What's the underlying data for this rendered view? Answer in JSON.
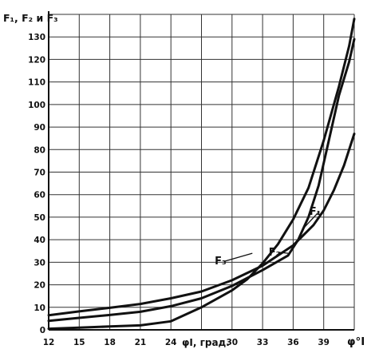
{
  "chart_data": {
    "type": "line",
    "y_axis_title": "F₁, F₂ и F₃",
    "x_axis_title_inline": "φI, град.",
    "x_axis_end_label": "φ°I",
    "x_ticks": [
      "12",
      "15",
      "18",
      "21",
      "24",
      "30",
      "33",
      "36",
      "39"
    ],
    "y_ticks": [
      "0",
      "10",
      "20",
      "30",
      "40",
      "50",
      "60",
      "70",
      "80",
      "90",
      "100",
      "110",
      "120",
      "130"
    ],
    "xlim": [
      12,
      42
    ],
    "ylim": [
      0,
      140
    ],
    "grid": true,
    "series": [
      {
        "name": "F₁",
        "x": [
          12,
          15,
          18,
          21,
          24,
          27,
          30,
          33,
          36,
          37,
          38,
          39,
          40,
          41,
          42
        ],
        "y": [
          6.5,
          8.2,
          9.8,
          11.5,
          14,
          17,
          22,
          28.5,
          37.5,
          42,
          46.5,
          53,
          62,
          73,
          87
        ]
      },
      {
        "name": "F₂",
        "x": [
          12,
          15,
          18,
          21,
          24,
          27,
          30,
          33,
          35.5,
          36.5,
          37.5,
          38.5,
          39.5,
          40.5,
          41.5,
          42
        ],
        "y": [
          4,
          5.3,
          6.6,
          8,
          10.5,
          14,
          19.5,
          26.5,
          33,
          40,
          50,
          64,
          84,
          104,
          119,
          129
        ]
      },
      {
        "name": "F₃",
        "x": [
          12,
          15,
          18,
          21,
          24,
          27,
          30,
          31.5,
          33,
          34.5,
          36,
          37.5,
          39,
          40.5,
          41.5,
          42
        ],
        "y": [
          0.5,
          1,
          1.5,
          2,
          3.8,
          10,
          17.5,
          22.5,
          29.5,
          38,
          49,
          63,
          84,
          108,
          126,
          138
        ]
      }
    ]
  }
}
